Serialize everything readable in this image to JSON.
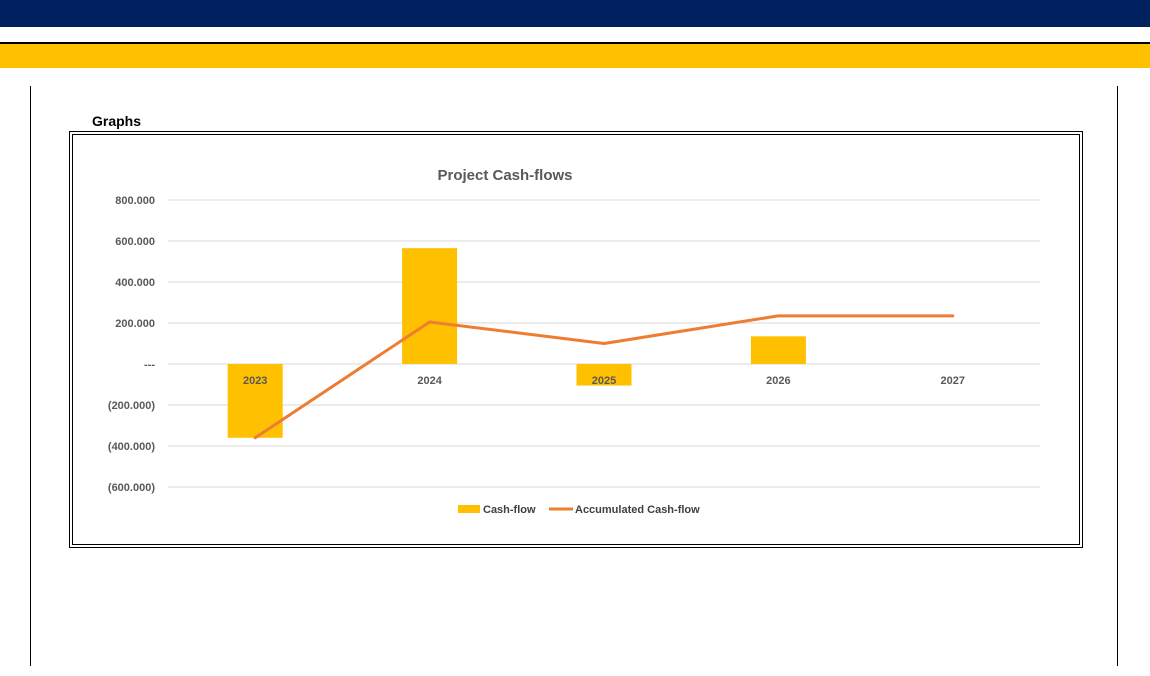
{
  "section_title": "Graphs",
  "colors": {
    "header_band": "#002060",
    "accent_band": "#ffc000",
    "bar": "#ffc000",
    "line": "#ed7d31",
    "gridline": "#d9d9d9"
  },
  "chart_data": {
    "type": "bar",
    "title": "Project Cash-flows",
    "categories": [
      "2023",
      "2024",
      "2025",
      "2026",
      "2027"
    ],
    "series": [
      {
        "name": "Cash-flow",
        "type": "bar",
        "values": [
          -360000,
          565000,
          -105000,
          135000,
          0
        ]
      },
      {
        "name": "Accumulated Cash-flow",
        "type": "line",
        "values": [
          -360000,
          205000,
          100000,
          235000,
          235000
        ]
      }
    ],
    "ylim": [
      -600000,
      800000
    ],
    "y_ticks": [
      800000,
      600000,
      400000,
      200000,
      0,
      -200000,
      -400000,
      -600000
    ],
    "y_tick_labels": [
      "800.000",
      "600.000",
      "400.000",
      "200.000",
      "---",
      "(200.000)",
      "(400.000)",
      "(600.000)"
    ],
    "grid": true,
    "legend_position": "bottom"
  }
}
